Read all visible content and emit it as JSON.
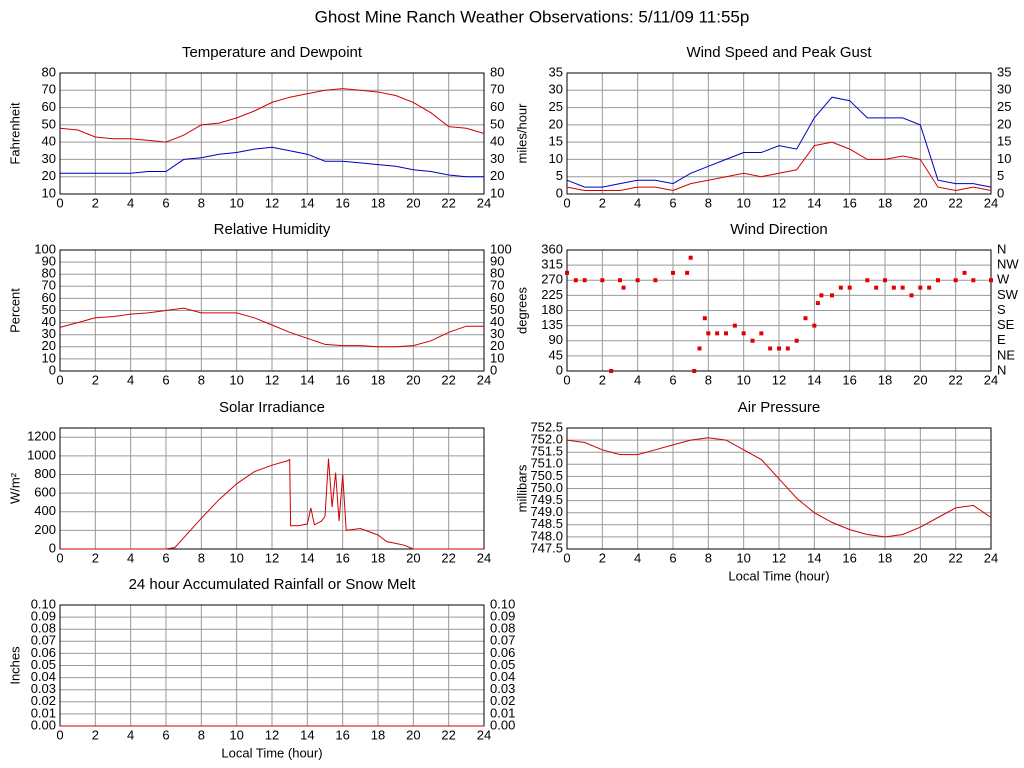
{
  "title": "Ghost Mine Ranch Weather Observations: 5/11/09 11:55p",
  "chart_data": [
    {
      "type": "line",
      "title": "Temperature and Dewpoint",
      "ylabel": "Fahrenheit",
      "x": [
        0,
        1,
        2,
        3,
        4,
        5,
        6,
        7,
        8,
        9,
        10,
        11,
        12,
        13,
        14,
        15,
        16,
        17,
        18,
        19,
        20,
        21,
        22,
        23,
        24
      ],
      "series": [
        {
          "color": "#d00000",
          "values": [
            48,
            47,
            43,
            42,
            42,
            41,
            40,
            44,
            50,
            51,
            54,
            58,
            63,
            66,
            68,
            70,
            71,
            70,
            69,
            67,
            63,
            57,
            49,
            48,
            45
          ]
        },
        {
          "color": "#0000c0",
          "values": [
            22,
            22,
            22,
            22,
            22,
            23,
            23,
            30,
            31,
            33,
            34,
            36,
            37,
            35,
            33,
            29,
            29,
            28,
            27,
            26,
            24,
            23,
            21,
            20,
            20
          ]
        }
      ],
      "xlim": [
        0,
        24
      ],
      "xticks": [
        0,
        2,
        4,
        6,
        8,
        10,
        12,
        14,
        16,
        18,
        20,
        22,
        24
      ],
      "ylim": [
        10,
        80
      ],
      "yticks": [
        10,
        20,
        30,
        40,
        50,
        60,
        70,
        80
      ],
      "y2lim": [
        10,
        80
      ],
      "y2ticks": [
        10,
        20,
        30,
        40,
        50,
        60,
        70,
        80
      ],
      "grid": true
    },
    {
      "type": "line",
      "title": "Wind Speed and Peak Gust",
      "ylabel": "miles/hour",
      "x": [
        0,
        1,
        2,
        3,
        4,
        5,
        6,
        7,
        8,
        9,
        10,
        11,
        12,
        13,
        14,
        15,
        16,
        17,
        18,
        19,
        20,
        21,
        22,
        23,
        24
      ],
      "series": [
        {
          "color": "#0000c0",
          "values": [
            4,
            2,
            2,
            3,
            4,
            4,
            3,
            6,
            8,
            10,
            12,
            12,
            14,
            13,
            22,
            28,
            27,
            22,
            22,
            22,
            20,
            4,
            3,
            3,
            2
          ]
        },
        {
          "color": "#d00000",
          "values": [
            2,
            1,
            1,
            1,
            2,
            2,
            1,
            3,
            4,
            5,
            6,
            5,
            6,
            7,
            14,
            15,
            13,
            10,
            10,
            11,
            10,
            2,
            1,
            2,
            1
          ]
        }
      ],
      "xlim": [
        0,
        24
      ],
      "xticks": [
        0,
        2,
        4,
        6,
        8,
        10,
        12,
        14,
        16,
        18,
        20,
        22,
        24
      ],
      "ylim": [
        0,
        35
      ],
      "yticks": [
        0,
        5,
        10,
        15,
        20,
        25,
        30,
        35
      ],
      "y2lim": [
        0,
        35
      ],
      "y2ticks": [
        0,
        5,
        10,
        15,
        20,
        25,
        30,
        35
      ],
      "grid": true
    },
    {
      "type": "line",
      "title": "Relative Humidity",
      "ylabel": "Percent",
      "x": [
        0,
        1,
        2,
        3,
        4,
        5,
        6,
        7,
        8,
        9,
        10,
        11,
        12,
        13,
        14,
        15,
        16,
        17,
        18,
        19,
        20,
        21,
        22,
        23,
        24
      ],
      "series": [
        {
          "color": "#d00000",
          "values": [
            36,
            40,
            44,
            45,
            47,
            48,
            50,
            52,
            48,
            48,
            48,
            44,
            38,
            32,
            27,
            22,
            21,
            21,
            20,
            20,
            21,
            25,
            32,
            37,
            37
          ]
        }
      ],
      "xlim": [
        0,
        24
      ],
      "xticks": [
        0,
        2,
        4,
        6,
        8,
        10,
        12,
        14,
        16,
        18,
        20,
        22,
        24
      ],
      "ylim": [
        0,
        100
      ],
      "yticks": [
        0,
        10,
        20,
        30,
        40,
        50,
        60,
        70,
        80,
        90,
        100
      ],
      "y2lim": [
        0,
        100
      ],
      "y2ticks": [
        0,
        10,
        20,
        30,
        40,
        50,
        60,
        70,
        80,
        90,
        100
      ],
      "grid": true
    },
    {
      "type": "scatter",
      "title": "Wind Direction",
      "ylabel": "degrees",
      "x": [
        0,
        0.5,
        1,
        2,
        2.5,
        3,
        3.2,
        4,
        5,
        6,
        6.8,
        7,
        7.2,
        7.5,
        7.8,
        8,
        8.5,
        9,
        9.5,
        10,
        10.5,
        11,
        11.5,
        12,
        12.5,
        13,
        13.5,
        14,
        14.2,
        14.4,
        15,
        15.5,
        16,
        17,
        17.5,
        18,
        18.5,
        19,
        19.5,
        20,
        20.5,
        21,
        22,
        22.5,
        23,
        24
      ],
      "series": [
        {
          "color": "#e00000",
          "values": [
            292,
            270,
            270,
            270,
            0,
            270,
            248,
            270,
            270,
            292,
            292,
            337,
            0,
            67,
            157,
            112,
            112,
            112,
            135,
            112,
            90,
            112,
            67,
            67,
            67,
            90,
            157,
            135,
            202,
            225,
            225,
            248,
            248,
            270,
            248,
            270,
            248,
            248,
            225,
            248,
            248,
            270,
            270,
            292,
            270,
            270
          ]
        }
      ],
      "xlim": [
        0,
        24
      ],
      "xticks": [
        0,
        2,
        4,
        6,
        8,
        10,
        12,
        14,
        16,
        18,
        20,
        22,
        24
      ],
      "ylim": [
        0,
        360
      ],
      "yticks": [
        0,
        45,
        90,
        135,
        180,
        225,
        270,
        315,
        360
      ],
      "y2lim": [
        0,
        360
      ],
      "y2ticks": [
        {
          "value": 0,
          "label": "N"
        },
        {
          "value": 45,
          "label": "NE"
        },
        {
          "value": 90,
          "label": "E"
        },
        {
          "value": 135,
          "label": "SE"
        },
        {
          "value": 180,
          "label": "S"
        },
        {
          "value": 225,
          "label": "SW"
        },
        {
          "value": 270,
          "label": "W"
        },
        {
          "value": 315,
          "label": "NW"
        },
        {
          "value": 360,
          "label": "N"
        }
      ],
      "grid": true
    },
    {
      "type": "line",
      "title": "Solar Irradiance",
      "ylabel": "W/m²",
      "x": [
        0,
        6,
        6.5,
        7,
        8,
        9,
        10,
        11,
        12,
        12.9,
        13,
        13.05,
        13.5,
        14,
        14.2,
        14.4,
        14.8,
        15,
        15.2,
        15.4,
        15.6,
        15.8,
        16,
        16.2,
        17,
        18,
        18.5,
        19,
        19.5,
        20,
        24
      ],
      "series": [
        {
          "color": "#d00000",
          "values": [
            0,
            0,
            15,
            120,
            330,
            530,
            700,
            830,
            900,
            950,
            960,
            250,
            250,
            270,
            440,
            260,
            300,
            350,
            970,
            450,
            820,
            300,
            800,
            200,
            220,
            150,
            80,
            60,
            40,
            0,
            0
          ]
        }
      ],
      "xlim": [
        0,
        24
      ],
      "xticks": [
        0,
        2,
        4,
        6,
        8,
        10,
        12,
        14,
        16,
        18,
        20,
        22,
        24
      ],
      "ylim": [
        0,
        1300
      ],
      "yticks": [
        0,
        200,
        400,
        600,
        800,
        1000,
        1200
      ],
      "grid": true
    },
    {
      "type": "line",
      "title": "Air Pressure",
      "ylabel": "millibars",
      "xlabel": "Local Time (hour)",
      "x": [
        0,
        1,
        2,
        3,
        4,
        5,
        6,
        7,
        8,
        9,
        10,
        11,
        12,
        13,
        14,
        15,
        16,
        17,
        18,
        19,
        20,
        21,
        22,
        23,
        24
      ],
      "series": [
        {
          "color": "#d00000",
          "values": [
            752.0,
            751.9,
            751.6,
            751.4,
            751.4,
            751.6,
            751.8,
            752.0,
            752.1,
            752.0,
            751.6,
            751.2,
            750.4,
            749.6,
            749.0,
            748.6,
            748.3,
            748.1,
            748.0,
            748.1,
            748.4,
            748.8,
            749.2,
            749.3,
            748.8
          ]
        }
      ],
      "xlim": [
        0,
        24
      ],
      "xticks": [
        0,
        2,
        4,
        6,
        8,
        10,
        12,
        14,
        16,
        18,
        20,
        22,
        24
      ],
      "ylim": [
        747.5,
        752.5
      ],
      "yticks": [
        {
          "value": 747.5,
          "label": "747.5"
        },
        {
          "value": 748,
          "label": "748.0"
        },
        {
          "value": 748.5,
          "label": "748.5"
        },
        {
          "value": 749,
          "label": "749.0"
        },
        {
          "value": 749.5,
          "label": "749.5"
        },
        {
          "value": 750,
          "label": "750.0"
        },
        {
          "value": 750.5,
          "label": "750.5"
        },
        {
          "value": 751,
          "label": "751.0"
        },
        {
          "value": 751.5,
          "label": "751.5"
        },
        {
          "value": 752,
          "label": "752.0"
        },
        {
          "value": 752.5,
          "label": "752.5"
        }
      ],
      "grid": true
    },
    {
      "type": "line",
      "title": "24 hour Accumulated Rainfall or Snow Melt",
      "ylabel": "Inches",
      "xlabel": "Local Time (hour)",
      "x": [
        0,
        24
      ],
      "series": [
        {
          "color": "#d00000",
          "values": [
            0,
            0
          ]
        }
      ],
      "xlim": [
        0,
        24
      ],
      "xticks": [
        0,
        2,
        4,
        6,
        8,
        10,
        12,
        14,
        16,
        18,
        20,
        22,
        24
      ],
      "ylim": [
        0,
        0.1
      ],
      "yticks": [
        {
          "value": 0,
          "label": "0.00"
        },
        {
          "value": 0.01,
          "label": "0.01"
        },
        {
          "value": 0.02,
          "label": "0.02"
        },
        {
          "value": 0.03,
          "label": "0.03"
        },
        {
          "value": 0.04,
          "label": "0.04"
        },
        {
          "value": 0.05,
          "label": "0.05"
        },
        {
          "value": 0.06,
          "label": "0.06"
        },
        {
          "value": 0.07,
          "label": "0.07"
        },
        {
          "value": 0.08,
          "label": "0.08"
        },
        {
          "value": 0.09,
          "label": "0.09"
        },
        {
          "value": 0.1,
          "label": "0.10"
        }
      ],
      "y2lim": [
        0,
        0.1
      ],
      "y2ticks": [
        {
          "value": 0,
          "label": "0.00"
        },
        {
          "value": 0.01,
          "label": "0.01"
        },
        {
          "value": 0.02,
          "label": "0.02"
        },
        {
          "value": 0.03,
          "label": "0.03"
        },
        {
          "value": 0.04,
          "label": "0.04"
        },
        {
          "value": 0.05,
          "label": "0.05"
        },
        {
          "value": 0.06,
          "label": "0.06"
        },
        {
          "value": 0.07,
          "label": "0.07"
        },
        {
          "value": 0.08,
          "label": "0.08"
        },
        {
          "value": 0.09,
          "label": "0.09"
        },
        {
          "value": 0.1,
          "label": "0.10"
        }
      ],
      "grid": true
    }
  ]
}
